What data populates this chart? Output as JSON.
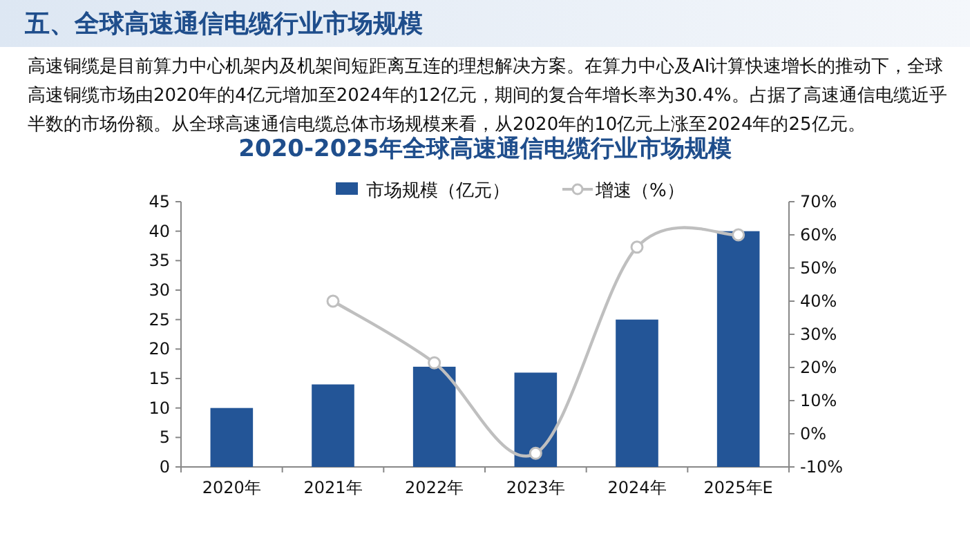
{
  "chart_data": {
    "type": "bar",
    "annotations": [
      "五、全球高速通信电缆行业市场规模"
    ],
    "subtitle": "高速铜缆是目前算力中心机架内及机架间短距离互连的理想解决方案。在算力中心及AI计算快速增长的推动下，全球高速铜缆市场由2020年的4亿元增加至2024年的12亿元，期间的复合年增长率为30.4%。占据了高速通信电缆近乎半数的市场份额。从全球高速通信电缆总体市场规模来看，从2020年的10亿元上涨至2024年的25亿元。",
    "title": "2020-2025年全球高速通信电缆行业市场规模",
    "categories": [
      "2020年",
      "2021年",
      "2022年",
      "2023年",
      "2024年",
      "2025年E"
    ],
    "series": [
      {
        "name": "市场规模（亿元）",
        "color": "#235597",
        "values": [
          10,
          14,
          17,
          16,
          25,
          40
        ]
      },
      {
        "name": "增速（%）",
        "type": "line",
        "axis": "y2",
        "color": "#bfbfbf",
        "values": [
          null,
          40,
          21.4,
          -5.9,
          56.3,
          60
        ]
      }
    ],
    "marker": "circle",
    "ylim": [
      0,
      45
    ],
    "yticks": [
      0,
      5,
      10,
      15,
      20,
      25,
      30,
      35,
      40,
      45
    ],
    "y2lim": [
      -10,
      70
    ],
    "y2ticks": [
      {
        "value": -10,
        "label": "-10%"
      },
      {
        "value": 0,
        "label": "0%"
      },
      {
        "value": 10,
        "label": "10%"
      },
      {
        "value": 20,
        "label": "20%"
      },
      {
        "value": 30,
        "label": "30%"
      },
      {
        "value": 40,
        "label": "40%"
      },
      {
        "value": 50,
        "label": "50%"
      },
      {
        "value": 60,
        "label": "60%"
      },
      {
        "value": 70,
        "label": "70%"
      }
    ],
    "legend": "top"
  }
}
